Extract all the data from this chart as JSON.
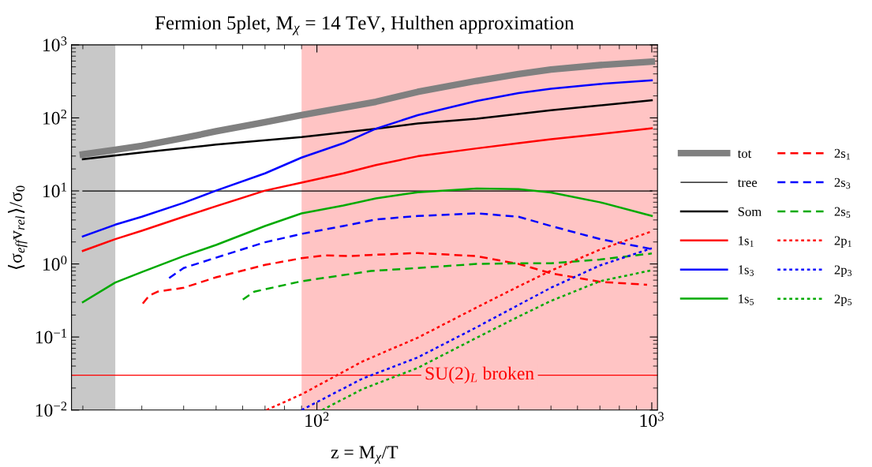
{
  "chart_data": {
    "type": "line",
    "title": "Fermion 5plet, M$_{χ}$ = 14 TeV, Hulthen approximation",
    "xlabel": "z = M$_{χ}$/T",
    "ylabel": "⟨σ$_{eff}$v$_{rel}$⟩/σ$_{0}$",
    "log": "xy",
    "grid": false,
    "legend": "right",
    "xlim": [
      18.5,
      1040
    ],
    "xticks": [
      {
        "value": 100,
        "label": "10$^{2}$"
      },
      {
        "value": 1000,
        "label": "10$^{3}$"
      }
    ],
    "ylim": [
      0.01,
      1000
    ],
    "yticks": [
      {
        "value": 0.01,
        "label": "10$^{−2}$"
      },
      {
        "value": 0.1,
        "label": "10$^{−1}$"
      },
      {
        "value": 1,
        "label": "10$^{0}$"
      },
      {
        "value": 10,
        "label": "10$^{1}$"
      },
      {
        "value": 100,
        "label": "10$^{2}$"
      },
      {
        "value": 1000,
        "label": "10$^{3}$"
      }
    ],
    "bands": [
      {
        "axis": "x",
        "from": 18.5,
        "to": 25,
        "color": "#c8c8c8"
      },
      {
        "axis": "x",
        "from": 90,
        "to": 1040,
        "color": "#ffc4c4"
      }
    ],
    "ref_lines": [
      {
        "axis": "y",
        "value": 0.03,
        "label": "SU(2)$_{L}$ broken",
        "color": "#ff0000",
        "line_style": "solid"
      }
    ],
    "series": [
      {
        "name": "tot",
        "color": "#808080",
        "line_style": "solid",
        "x": [
          20,
          25,
          30,
          40,
          50,
          70,
          90,
          150,
          200,
          300,
          400,
          500,
          700,
          1000
        ],
        "values": [
          31.6,
          36.6,
          41.5,
          53,
          65.5,
          87.5,
          109,
          166,
          227,
          321,
          398,
          459,
          528,
          589
        ]
      },
      {
        "name": "tree",
        "color": "#000000",
        "line_style": "solid",
        "x": [
          20,
          1000
        ],
        "values": [
          10,
          10
        ]
      },
      {
        "name": "Som",
        "color": "#000000",
        "line_style": "solid",
        "x": [
          20,
          30,
          50,
          90,
          150,
          200,
          300,
          500,
          1000
        ],
        "values": [
          27.2,
          33.7,
          43,
          54.6,
          71,
          84,
          97.5,
          127,
          174
        ]
      },
      {
        "name": "1s$_{1}$",
        "color": "#ff0000",
        "line_style": "solid",
        "x": [
          20,
          25,
          30,
          40,
          50,
          70,
          90,
          120,
          150,
          200,
          300,
          400,
          500,
          700,
          1000
        ],
        "values": [
          1.51,
          2.19,
          2.85,
          4.43,
          6.17,
          10.1,
          13,
          17.4,
          22.6,
          29.8,
          38.2,
          45,
          51,
          60,
          72
        ]
      },
      {
        "name": "1s$_{3}$",
        "color": "#0000ff",
        "line_style": "solid",
        "x": [
          20,
          25,
          30,
          40,
          50,
          70,
          90,
          120,
          150,
          200,
          300,
          400,
          500,
          700,
          1000
        ],
        "values": [
          2.38,
          3.45,
          4.43,
          6.87,
          10.1,
          17.4,
          28.6,
          45,
          71,
          109,
          170,
          218,
          251,
          291,
          327
        ]
      },
      {
        "name": "1s$_{5}$",
        "color": "#00aa00",
        "line_style": "solid",
        "x": [
          20,
          25,
          30,
          40,
          50,
          70,
          90,
          120,
          150,
          200,
          300,
          400,
          500,
          700,
          1000
        ],
        "values": [
          0.3,
          0.557,
          0.776,
          1.28,
          1.82,
          3.31,
          4.93,
          6.3,
          7.9,
          9.6,
          10.8,
          10.6,
          9.5,
          7.0,
          4.54
        ]
      },
      {
        "name": "2s$_{1}$",
        "color": "#ff0000",
        "line_style": "dashed",
        "x": [
          30.2,
          31.6,
          33.4,
          40,
          50,
          70,
          90,
          105,
          125,
          145,
          200,
          300,
          400,
          500,
          700,
          968
        ],
        "values": [
          0.287,
          0.37,
          0.417,
          0.472,
          0.657,
          0.97,
          1.2,
          1.31,
          1.28,
          1.33,
          1.41,
          1.28,
          1.0,
          0.745,
          0.57,
          0.52
        ]
      },
      {
        "name": "2s$_{3}$",
        "color": "#0000ff",
        "line_style": "dashed",
        "x": [
          36.2,
          40,
          50,
          70,
          90,
          120,
          150,
          200,
          300,
          400,
          500,
          700,
          1000
        ],
        "values": [
          0.64,
          0.88,
          1.22,
          1.98,
          2.58,
          3.31,
          4.07,
          4.54,
          4.93,
          4.43,
          3.31,
          2.19,
          1.6
        ]
      },
      {
        "name": "2s$_{5}$",
        "color": "#00aa00",
        "line_style": "dashed",
        "x": [
          60.1,
          65,
          90,
          145,
          200,
          300,
          400,
          500,
          700,
          1000
        ],
        "values": [
          0.325,
          0.417,
          0.58,
          0.8,
          0.88,
          1.0,
          1.02,
          1.02,
          1.15,
          1.39
        ]
      },
      {
        "name": "2p$_{1}$",
        "color": "#ff0000",
        "line_style": "dotted",
        "x": [
          70.7,
          90,
          137,
          200,
          300,
          400,
          500,
          700,
          1000
        ],
        "values": [
          0.01,
          0.0164,
          0.0464,
          0.0977,
          0.254,
          0.492,
          0.81,
          1.57,
          2.8
        ]
      },
      {
        "name": "2p$_{3}$",
        "color": "#0000ff",
        "line_style": "dotted",
        "x": [
          90,
          137,
          200,
          300,
          400,
          500,
          700,
          1000
        ],
        "values": [
          0.01,
          0.027,
          0.0525,
          0.136,
          0.275,
          0.472,
          0.955,
          1.64
        ]
      },
      {
        "name": "2p$_{5}$",
        "color": "#00aa00",
        "line_style": "dotted",
        "x": [
          103.6,
          137,
          200,
          300,
          400,
          500,
          700,
          1000
        ],
        "values": [
          0.01,
          0.0194,
          0.0377,
          0.0977,
          0.19,
          0.312,
          0.58,
          0.82
        ]
      }
    ]
  }
}
